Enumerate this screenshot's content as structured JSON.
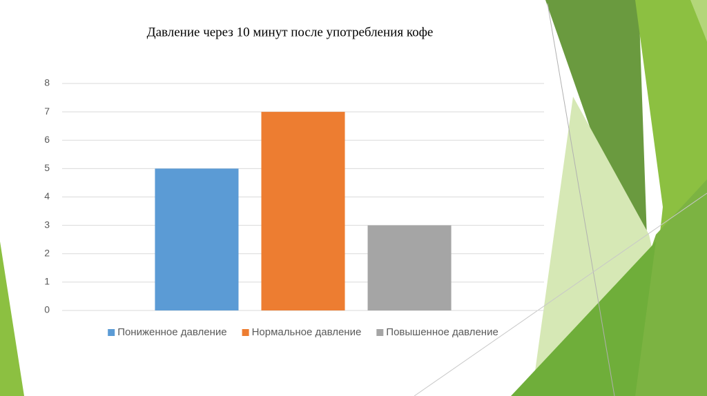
{
  "chart_data": {
    "type": "bar",
    "title": "Давление через 10 минут после употребления кофе",
    "categories": [
      null
    ],
    "series": [
      {
        "name": "Пониженное давление",
        "color": "#5b9bd5",
        "values": [
          5
        ]
      },
      {
        "name": "Нормальное давление",
        "color": "#ed7d31",
        "values": [
          7
        ]
      },
      {
        "name": "Повышенное давление",
        "color": "#a5a5a5",
        "values": [
          3
        ]
      }
    ],
    "ylim": [
      0,
      8
    ],
    "yticks": [
      0,
      1,
      2,
      3,
      4,
      5,
      6,
      7,
      8
    ],
    "grid": true,
    "legend": "bottom"
  }
}
